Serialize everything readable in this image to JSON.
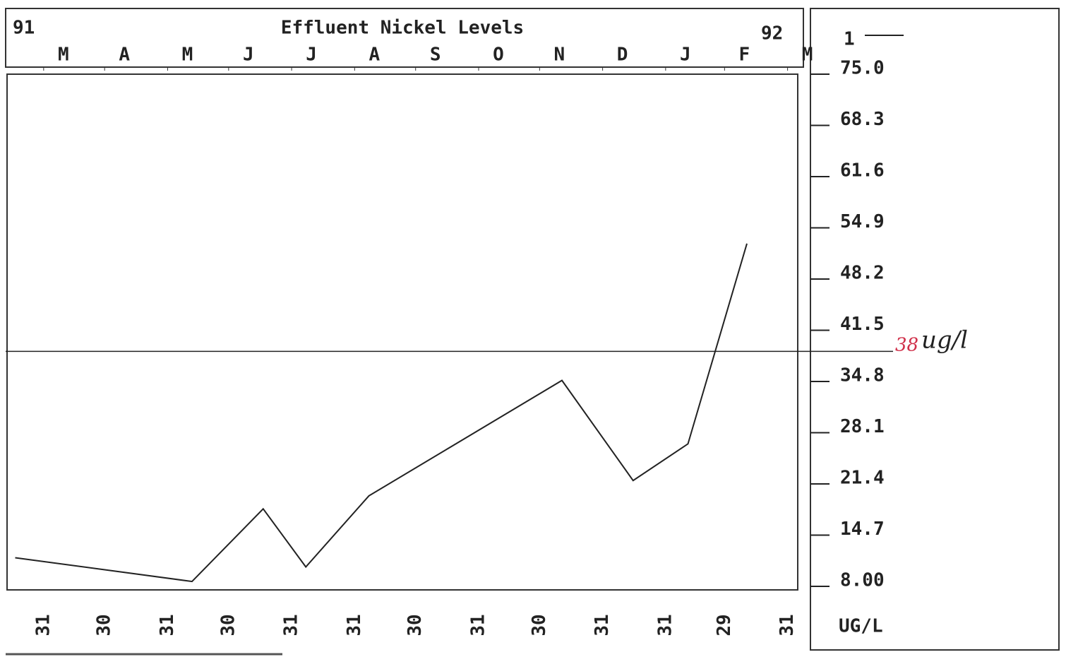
{
  "chart_data": {
    "type": "line",
    "title": "Effluent Nickel Levels",
    "year_labels": [
      "91",
      "92"
    ],
    "month_labels": [
      "M",
      "A",
      "M",
      "J",
      "J",
      "A",
      "S",
      "O",
      "N",
      "D",
      "J",
      "F",
      "M"
    ],
    "y_label": "UG/L",
    "xlim": [
      "1991-03-13",
      "1992-04-05"
    ],
    "xticks": [
      {
        "value": "1991-03-31",
        "label": "31"
      },
      {
        "value": "1991-04-30",
        "label": "30"
      },
      {
        "value": "1991-05-31",
        "label": "31"
      },
      {
        "value": "1991-06-30",
        "label": "30"
      },
      {
        "value": "1991-07-31",
        "label": "31"
      },
      {
        "value": "1991-08-31",
        "label": "31"
      },
      {
        "value": "1991-09-30",
        "label": "30"
      },
      {
        "value": "1991-10-31",
        "label": "31"
      },
      {
        "value": "1991-11-30",
        "label": "30"
      },
      {
        "value": "1991-12-31",
        "label": "31"
      },
      {
        "value": "1992-01-31",
        "label": "31"
      },
      {
        "value": "1992-02-29",
        "label": "29"
      },
      {
        "value": "1992-03-31",
        "label": "31"
      }
    ],
    "ylim": [
      8,
      75
    ],
    "yticks": [
      {
        "value": 75,
        "label": "75.0"
      },
      68.3,
      61.6,
      54.9,
      48.2,
      41.5,
      34.8,
      28.1,
      21.4,
      14.7,
      {
        "value": 8,
        "label": "8.00"
      }
    ],
    "x": [
      "1991-03-17",
      "1991-06-12",
      "1991-07-17",
      "1991-08-07",
      "1991-09-07",
      "1991-12-11",
      "1992-01-15",
      "1992-02-11",
      "1992-03-11"
    ],
    "series": [
      {
        "name": "1",
        "color": "#222222",
        "values": [
          11.0,
          7.9,
          17.4,
          9.8,
          19.1,
          34.2,
          21.1,
          25.9,
          52.1
        ]
      }
    ],
    "reference_line": {
      "value": 38,
      "color": "#222222"
    },
    "annotation": {
      "value_text": "38",
      "unit_text": "ug/l",
      "value_color": "#d0304a"
    }
  }
}
